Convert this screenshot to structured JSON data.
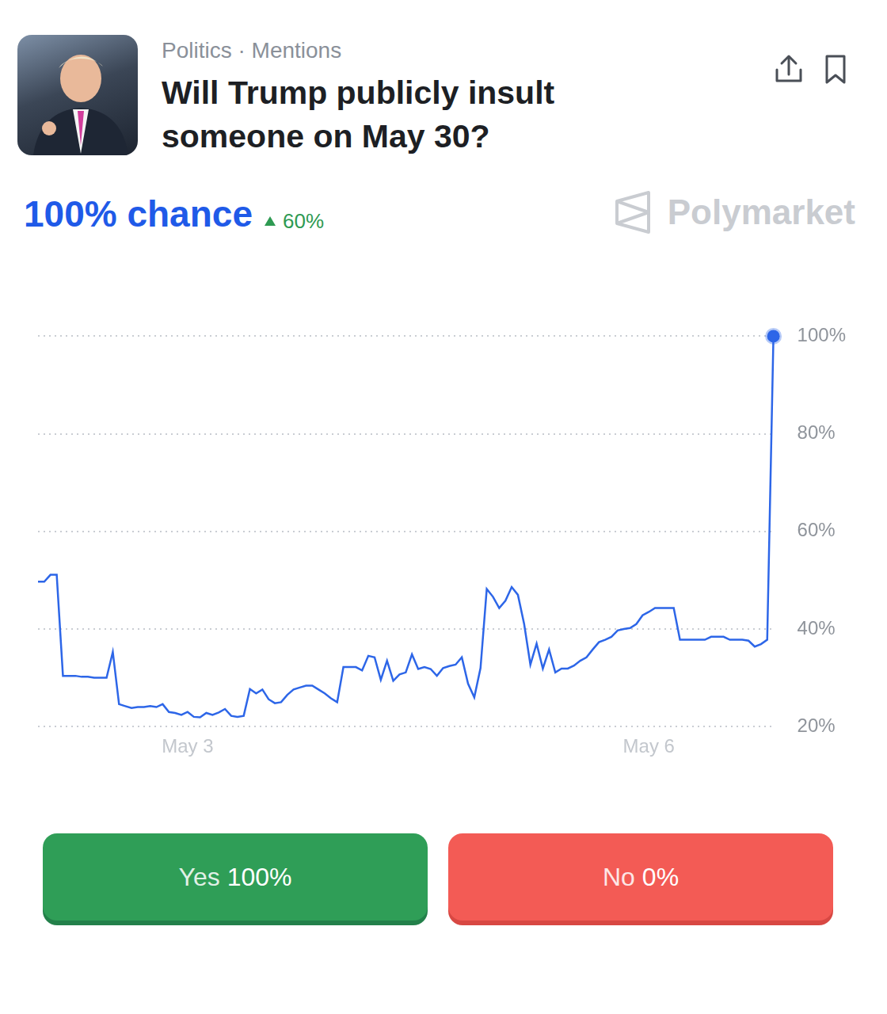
{
  "header": {
    "breadcrumb": "Politics · Mentions",
    "title": "Will Trump publicly insult someone on May 30?"
  },
  "headline": {
    "text": "100% chance",
    "change": "60%"
  },
  "brand": "Polymarket",
  "buttons": [
    {
      "label": "Yes",
      "value": "100%"
    },
    {
      "label": "No",
      "value": "0%"
    }
  ],
  "chart_data": {
    "type": "line",
    "categories": [
      null,
      null,
      null,
      null,
      null,
      null,
      null,
      null,
      null,
      null,
      null,
      null,
      null,
      null,
      null,
      null,
      null,
      null,
      null,
      null,
      null,
      null,
      null,
      null,
      "May 3",
      null,
      null,
      null,
      null,
      null,
      null,
      null,
      null,
      null,
      null,
      null,
      null,
      null,
      null,
      null,
      null,
      null,
      null,
      null,
      null,
      null,
      null,
      null,
      null,
      null,
      null,
      null,
      null,
      null,
      null,
      null,
      null,
      null,
      null,
      null,
      null,
      null,
      null,
      null,
      null,
      null,
      null,
      null,
      null,
      null,
      null,
      null,
      null,
      null,
      null,
      null,
      null,
      null,
      null,
      null,
      null,
      null,
      null,
      null,
      null,
      null,
      null,
      null,
      null,
      null,
      null,
      null,
      null,
      null,
      null,
      null,
      null,
      null,
      "May 6",
      null,
      null,
      null,
      null,
      null,
      null,
      null,
      null,
      null,
      null,
      null,
      null,
      null,
      null,
      null,
      null,
      null,
      null,
      null,
      null
    ],
    "values": [
      49.7,
      49.7,
      51.1,
      51.1,
      30.4,
      30.4,
      30.4,
      30.2,
      30.2,
      30.0,
      30.0,
      30.0,
      35.3,
      24.6,
      24.2,
      23.8,
      24.0,
      24.0,
      24.2,
      24.0,
      24.6,
      23.0,
      22.8,
      22.4,
      23.0,
      22.0,
      21.9,
      22.8,
      22.4,
      22.9,
      23.6,
      22.2,
      22.0,
      22.2,
      27.7,
      26.8,
      27.6,
      25.6,
      24.8,
      25.0,
      26.5,
      27.6,
      28.0,
      28.4,
      28.4,
      27.6,
      26.8,
      25.8,
      25.0,
      32.2,
      32.2,
      32.2,
      31.5,
      34.5,
      34.2,
      29.6,
      33.5,
      29.4,
      30.7,
      31.1,
      34.8,
      31.8,
      32.2,
      31.8,
      30.4,
      32.0,
      32.4,
      32.7,
      34.2,
      28.8,
      26.0,
      32.0,
      48.2,
      46.6,
      44.3,
      45.8,
      48.6,
      47.0,
      41.0,
      32.7,
      37.0,
      31.9,
      35.8,
      31.1,
      31.9,
      31.9,
      32.5,
      33.5,
      34.2,
      35.8,
      37.3,
      37.8,
      38.4,
      39.7,
      40.0,
      40.2,
      41.0,
      42.8,
      43.5,
      44.3,
      44.3,
      44.3,
      44.3,
      37.8,
      37.8,
      37.8,
      37.8,
      37.8,
      38.4,
      38.4,
      38.4,
      37.8,
      37.8,
      37.8,
      37.6,
      36.4,
      36.9,
      37.8,
      100
    ],
    "color": "#2d66e8",
    "ylim": [
      20,
      100
    ],
    "yticks": [
      {
        "value": 20,
        "label": "20%"
      },
      {
        "value": 40,
        "label": "40%"
      },
      {
        "value": 60,
        "label": "60%"
      },
      {
        "value": 80,
        "label": "80%"
      },
      {
        "value": 100,
        "label": "100%"
      }
    ],
    "grid": true
  }
}
